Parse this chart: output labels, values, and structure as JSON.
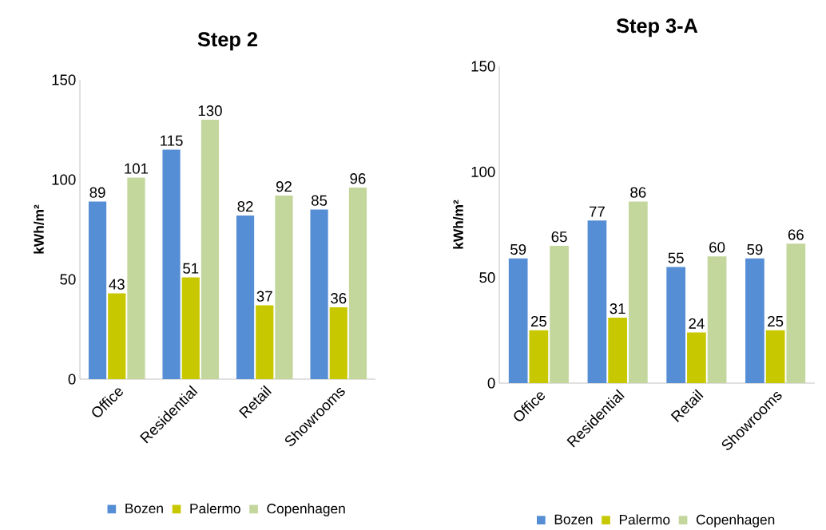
{
  "chart_data": [
    {
      "type": "bar",
      "title": "Step 2",
      "ylabel": "kWh/m²",
      "categories": [
        "Office",
        "Residential",
        "Retail",
        "Showrooms"
      ],
      "series": [
        {
          "name": "Bozen",
          "color": "#558ed5",
          "values": [
            89,
            115,
            82,
            85
          ]
        },
        {
          "name": "Palermo",
          "color": "#c8c800",
          "values": [
            43,
            51,
            37,
            36
          ]
        },
        {
          "name": "Copenhagen",
          "color": "#c3d69b",
          "values": [
            101,
            130,
            92,
            96
          ]
        }
      ],
      "ylim": [
        0,
        150
      ],
      "yticks": [
        0,
        50,
        100,
        150
      ],
      "data_labels": true,
      "legend": "bottom"
    },
    {
      "type": "bar",
      "title": "Step 3-A",
      "ylabel": "kWh/m²",
      "categories": [
        "Office",
        "Residential",
        "Retail",
        "Showrooms"
      ],
      "series": [
        {
          "name": "Bozen",
          "color": "#558ed5",
          "values": [
            59,
            77,
            55,
            59
          ]
        },
        {
          "name": "Palermo",
          "color": "#c8c800",
          "values": [
            25,
            31,
            24,
            25
          ]
        },
        {
          "name": "Copenhagen",
          "color": "#c3d69b",
          "values": [
            65,
            86,
            60,
            66
          ]
        }
      ],
      "ylim": [
        0,
        150
      ],
      "yticks": [
        0,
        50,
        100,
        150
      ],
      "data_labels": true,
      "legend": "bottom"
    }
  ]
}
